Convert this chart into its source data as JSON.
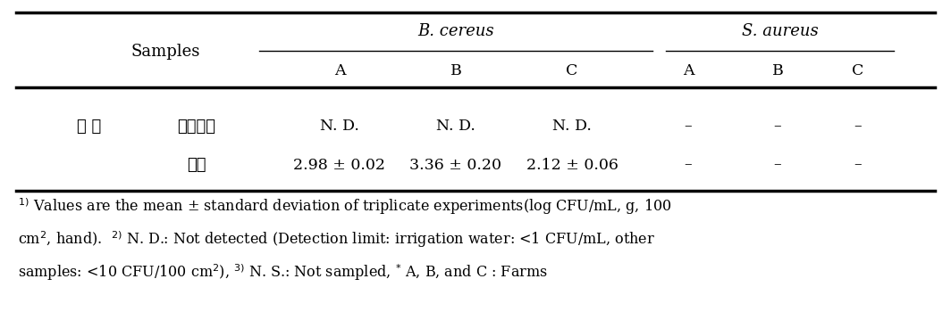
{
  "col1_header": "Samples",
  "bcereus_header": "B. cereus",
  "saureus_header": "S. aureus",
  "row1_label1": "재 배",
  "row1_label2": "관개용수",
  "row2_label2": "상토",
  "row1_data": [
    "N. D.",
    "N. D.",
    "N. D.",
    "–",
    "–",
    "–"
  ],
  "row2_data": [
    "2.98 ± 0.02",
    "3.36 ± 0.20",
    "2.12 ± 0.06",
    "–",
    "–",
    "–"
  ],
  "fn1_super": "1)",
  "fn1_text": " Values are the mean ± standard deviation of triplicate experiments(log CFU/mL, g, 100",
  "fn2_text": "cm², hand).  ²⁾ N. D.: Not detected (Detection limit: irrigation water: <1 CFU/mL, other",
  "fn3_text": "samples: <10 CFU/100 cm²), ³⁾ N. S.: Not sampled,  * A, B, and C : Farms",
  "background_color": "#ffffff",
  "text_color": "#000000"
}
